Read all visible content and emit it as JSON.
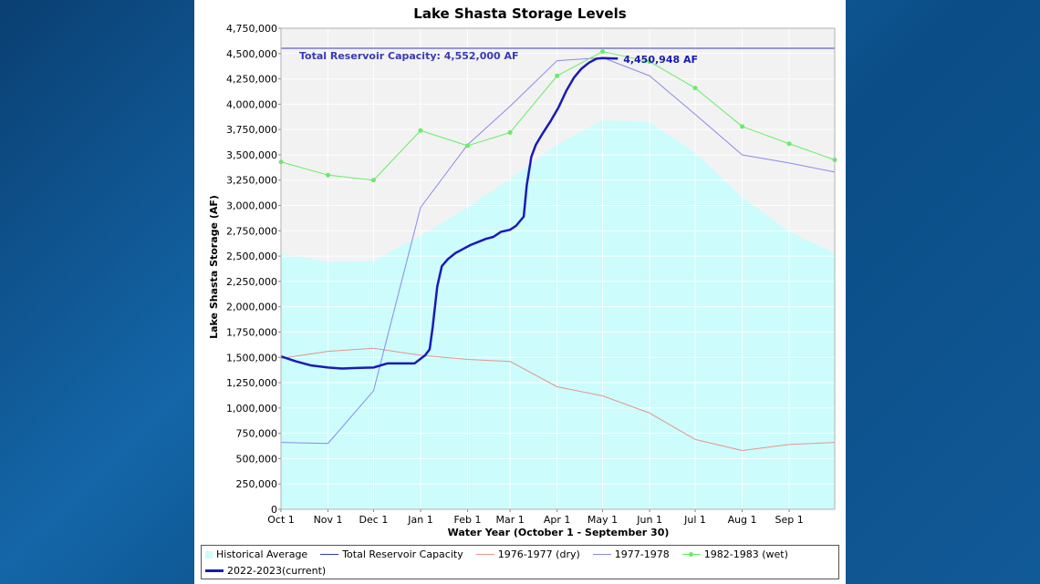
{
  "colors": {
    "historical": "#ccfcfc",
    "capacity": "#3a3ab4",
    "dry": "#e8948c",
    "y1977_78": "#8a8ae6",
    "wet": "#66ee66",
    "current": "#1a1ab4",
    "plot_bg": "#f2f2f2",
    "grid": "#ffffff"
  },
  "chart_data": {
    "type": "line",
    "title": "Lake Shasta Storage Levels",
    "xlabel": "Water Year (October 1 - September 30)",
    "ylabel": "Lake Shasta Storage (AF)",
    "ylim": [
      0,
      4750000
    ],
    "y_ticks": [
      "0",
      "250,000",
      "500,000",
      "750,000",
      "1,000,000",
      "1,250,000",
      "1,500,000",
      "1,750,000",
      "2,000,000",
      "2,250,000",
      "2,500,000",
      "2,750,000",
      "3,000,000",
      "3,250,000",
      "3,500,000",
      "3,750,000",
      "4,000,000",
      "4,250,000",
      "4,500,000",
      "4,750,000"
    ],
    "x_ticks": [
      "Oct 1",
      "Nov 1",
      "Dec 1",
      "Jan 1",
      "Feb 1",
      "Mar 1",
      "Apr 1",
      "May 1",
      "Jun 1",
      "Jul 1",
      "Aug 1",
      "Sep 1"
    ],
    "x_tick_days": [
      0,
      31,
      61,
      92,
      123,
      151,
      182,
      212,
      243,
      273,
      304,
      335
    ],
    "x_max_day": 365,
    "grid": true,
    "legend_position": "bottom",
    "capacity": {
      "name": "Total Reservoir Capacity",
      "value": 4552000,
      "label": "Total Reservoir Capacity: 4,552,000 AF"
    },
    "current_label": "4,450,948 AF",
    "series": [
      {
        "name": "Historical Average",
        "style": "area",
        "x": [
          0,
          31,
          61,
          92,
          123,
          151,
          182,
          212,
          243,
          273,
          304,
          335,
          365
        ],
        "values": [
          2530000,
          2440000,
          2450000,
          2700000,
          2980000,
          3260000,
          3600000,
          3840000,
          3820000,
          3520000,
          3080000,
          2740000,
          2530000
        ]
      },
      {
        "name": "1976-1977 (dry)",
        "style": "line",
        "x": [
          0,
          31,
          61,
          92,
          123,
          151,
          182,
          212,
          243,
          273,
          304,
          335,
          365
        ],
        "values": [
          1490000,
          1560000,
          1590000,
          1520000,
          1480000,
          1460000,
          1210000,
          1120000,
          950000,
          690000,
          580000,
          640000,
          660000
        ]
      },
      {
        "name": "1977-1978",
        "style": "line",
        "x": [
          0,
          31,
          61,
          92,
          123,
          151,
          182,
          212,
          243,
          273,
          304,
          335,
          365
        ],
        "values": [
          660000,
          650000,
          1170000,
          2980000,
          3600000,
          3980000,
          4430000,
          4460000,
          4280000,
          3900000,
          3500000,
          3420000,
          3330000
        ]
      },
      {
        "name": "1982-1983 (wet)",
        "style": "line-markers",
        "x": [
          0,
          31,
          61,
          92,
          123,
          151,
          182,
          212,
          243,
          273,
          304,
          335,
          365
        ],
        "values": [
          3430000,
          3300000,
          3250000,
          3740000,
          3590000,
          3720000,
          4280000,
          4520000,
          4420000,
          4160000,
          3780000,
          3610000,
          3450000
        ]
      },
      {
        "name": "2022-2023(current)",
        "style": "thick-line",
        "x": [
          0,
          10,
          20,
          31,
          40,
          50,
          61,
          70,
          80,
          88,
          95,
          98,
          100,
          103,
          106,
          110,
          115,
          120,
          125,
          130,
          135,
          140,
          145,
          151,
          155,
          160,
          162,
          165,
          168,
          172,
          178,
          183,
          188,
          193,
          198,
          203,
          208,
          212,
          218,
          222
        ],
        "values": [
          1510000,
          1460000,
          1420000,
          1400000,
          1390000,
          1395000,
          1400000,
          1440000,
          1440000,
          1440000,
          1520000,
          1580000,
          1800000,
          2200000,
          2400000,
          2470000,
          2530000,
          2570000,
          2610000,
          2640000,
          2670000,
          2690000,
          2740000,
          2760000,
          2800000,
          2890000,
          3200000,
          3480000,
          3600000,
          3700000,
          3840000,
          3970000,
          4130000,
          4260000,
          4350000,
          4410000,
          4450000,
          4455000,
          4452000,
          4450948
        ]
      }
    ]
  },
  "legend": [
    {
      "label": "Historical Average",
      "kind": "area",
      "color": "#ccfcfc"
    },
    {
      "label": "Total Reservoir Capacity",
      "kind": "line",
      "color": "#3a3ab4"
    },
    {
      "label": "1976-1977 (dry)",
      "kind": "line",
      "color": "#e8948c"
    },
    {
      "label": "1977-1978",
      "kind": "line",
      "color": "#8a8ae6"
    },
    {
      "label": "1982-1983 (wet)",
      "kind": "marker",
      "color": "#66ee66"
    },
    {
      "label": "2022-2023(current)",
      "kind": "thick",
      "color": "#1a1ab4"
    }
  ]
}
